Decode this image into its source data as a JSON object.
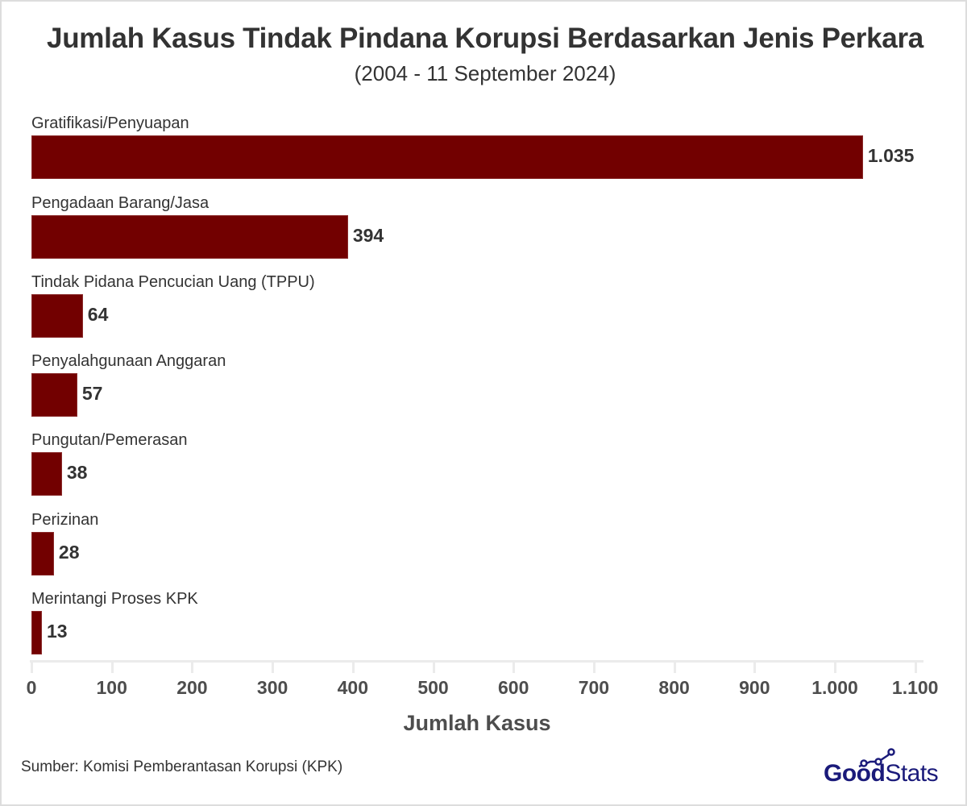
{
  "header": {
    "title": "Jumlah Kasus Tindak Pindana Korupsi Berdasarkan Jenis Perkara",
    "subtitle": "(2004 - 11 September 2024)"
  },
  "footer": {
    "source": "Sumber: Komisi Pemberantasan Korupsi (KPK)",
    "logo_part1": "Good",
    "logo_part2": "Stats",
    "logo_icon": "line-chart-dots-icon"
  },
  "colors": {
    "bar": "#720000",
    "text": "#333333",
    "axis": "#ebebeb",
    "logo": "#1a1a7a"
  },
  "chart_data": {
    "type": "bar",
    "orientation": "horizontal",
    "title": "Jumlah Kasus Tindak Pindana Korupsi Berdasarkan Jenis Perkara",
    "subtitle": "(2004 - 11 September 2024)",
    "xlabel": "Jumlah Kasus",
    "ylabel": "",
    "categories": [
      "Gratifikasi/Penyuapan",
      "Pengadaan Barang/Jasa",
      "Tindak Pidana Pencucian Uang (TPPU)",
      "Penyalahgunaan Anggaran",
      "Pungutan/Pemerasan",
      "Perizinan",
      "Merintangi Proses KPK"
    ],
    "values": [
      1035,
      394,
      64,
      57,
      38,
      28,
      13
    ],
    "value_labels": [
      "1.035",
      "394",
      "64",
      "57",
      "38",
      "28",
      "13"
    ],
    "xlim": [
      0,
      1100
    ],
    "xticks": [
      0,
      100,
      200,
      300,
      400,
      500,
      600,
      700,
      800,
      900,
      1000,
      1100
    ],
    "xtick_labels": [
      "0",
      "100",
      "200",
      "300",
      "400",
      "500",
      "600",
      "700",
      "800",
      "900",
      "1.000",
      "1.100"
    ],
    "grid": false,
    "legend": "none",
    "source": "Sumber: Komisi Pemberantasan Korupsi (KPK)"
  }
}
